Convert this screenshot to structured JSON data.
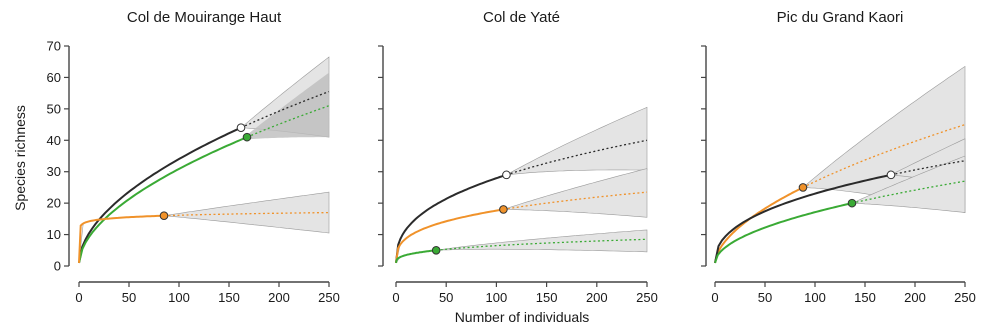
{
  "figure": {
    "xlabel": "Number of individuals",
    "ylabel": "Species richness"
  },
  "colors": {
    "black_series": "#2b2b2b",
    "green_series": "#3aaa35",
    "orange_series": "#f0922a",
    "band_light": "#e4e4e4",
    "band_dark": "#bdbdbd",
    "axis": "#444444"
  },
  "chart_data": [
    {
      "type": "line",
      "title": "Col de Mouirange Haut",
      "xlim": [
        0,
        250
      ],
      "ylim": [
        0,
        70
      ],
      "xticks": [
        0,
        50,
        100,
        150,
        200,
        250
      ],
      "yticks": [
        0,
        10,
        20,
        30,
        40,
        50,
        60,
        70
      ],
      "show_y_tick_labels": true,
      "series": [
        {
          "color_key": "black_series",
          "observed": {
            "x": 162,
            "y": 44
          },
          "extrapolated_end": 55.5,
          "marker_fill": "#ffffff",
          "band": [
            [
              250,
              41,
              66.5
            ]
          ],
          "band_shade": "dark_partial"
        },
        {
          "color_key": "green_series",
          "observed": {
            "x": 168,
            "y": 41
          },
          "extrapolated_end": 51,
          "marker_fill": "#3aaa35",
          "band_dark": {
            "x_start": 162,
            "end_low": 41,
            "end_high": 61.5
          }
        },
        {
          "color_key": "orange_series",
          "observed": {
            "x": 85,
            "y": 16
          },
          "extrapolated_end": 17,
          "marker_fill": "#f0922a",
          "band_end": [
            10.5,
            23.5
          ]
        }
      ]
    },
    {
      "type": "line",
      "title": "Col de Yaté",
      "xlim": [
        0,
        250
      ],
      "ylim": [
        0,
        70
      ],
      "xticks": [
        0,
        50,
        100,
        150,
        200,
        250
      ],
      "yticks": [
        0,
        10,
        20,
        30,
        40,
        50,
        60,
        70
      ],
      "show_y_tick_labels": false,
      "series": [
        {
          "color_key": "black_series",
          "observed": {
            "x": 110,
            "y": 29
          },
          "extrapolated_end": 40,
          "marker_fill": "#ffffff",
          "band_end": [
            30.5,
            50.5
          ]
        },
        {
          "color_key": "orange_series",
          "observed": {
            "x": 107,
            "y": 18
          },
          "extrapolated_end": 23.5,
          "marker_fill": "#f0922a",
          "band_end": [
            15.5,
            31
          ]
        },
        {
          "color_key": "green_series",
          "observed": {
            "x": 40,
            "y": 5
          },
          "extrapolated_end": 8.5,
          "marker_fill": "#3aaa35",
          "band_end": [
            4.5,
            11.5
          ]
        }
      ]
    },
    {
      "type": "line",
      "title": "Pic du Grand Kaori",
      "xlim": [
        0,
        250
      ],
      "ylim": [
        0,
        70
      ],
      "xticks": [
        0,
        50,
        100,
        150,
        200,
        250
      ],
      "yticks": [
        0,
        10,
        20,
        30,
        40,
        50,
        60,
        70
      ],
      "show_y_tick_labels": false,
      "series": [
        {
          "color_key": "orange_series",
          "observed": {
            "x": 88,
            "y": 25
          },
          "extrapolated_end": 45,
          "marker_fill": "#f0922a",
          "band_end": [
            17,
            63.5
          ]
        },
        {
          "color_key": "black_series",
          "observed": {
            "x": 176,
            "y": 29
          },
          "extrapolated_end": 33.5,
          "marker_fill": "#ffffff",
          "band_end": [
            26,
            40.5
          ]
        },
        {
          "color_key": "green_series",
          "observed": {
            "x": 137,
            "y": 20
          },
          "extrapolated_end": 27,
          "marker_fill": "#3aaa35",
          "band_end": [
            17,
            35
          ]
        }
      ]
    }
  ]
}
